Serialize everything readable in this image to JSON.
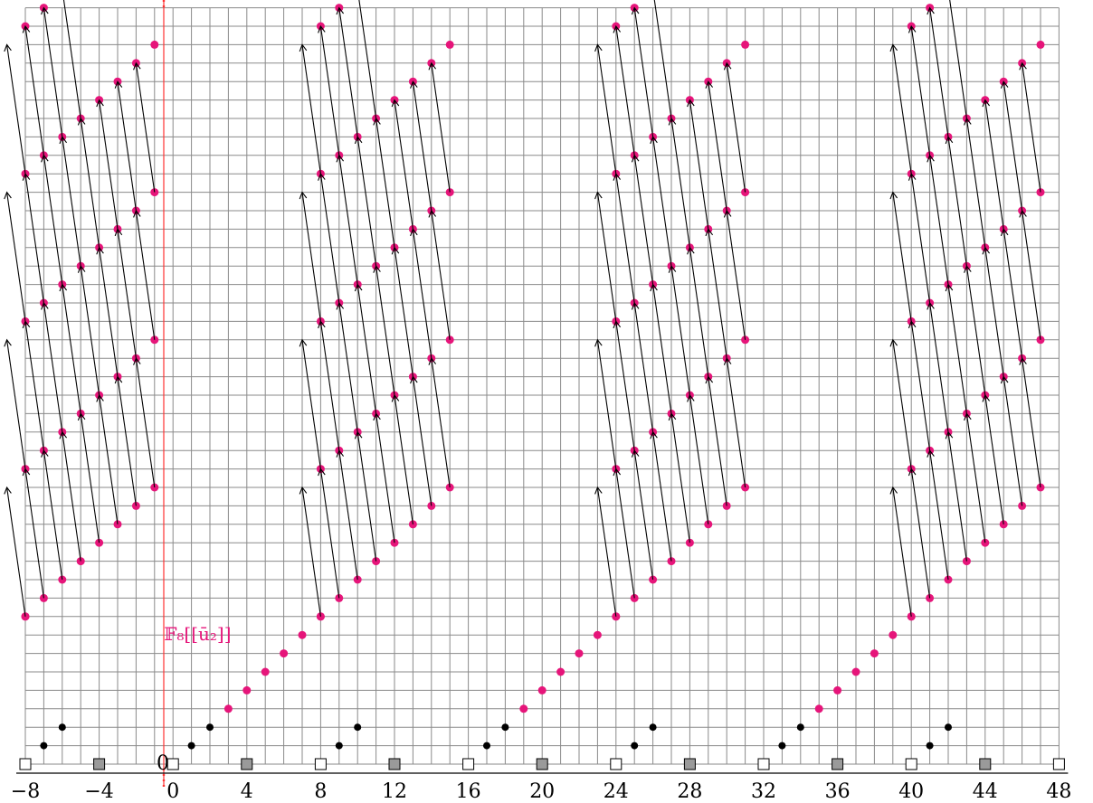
{
  "chart_data": {
    "type": "scatter",
    "x_axis": {
      "range": [
        -8,
        48
      ],
      "tick_labels": [
        "−8",
        "−4",
        "0",
        "4",
        "8",
        "12",
        "16",
        "20",
        "24",
        "28",
        "32",
        "36",
        "40",
        "44",
        "48"
      ],
      "tick_values": [
        -8,
        -4,
        0,
        4,
        8,
        12,
        16,
        20,
        24,
        28,
        32,
        36,
        40,
        44,
        48
      ]
    },
    "y_axis": {
      "range": [
        0,
        41
      ]
    },
    "grid": true,
    "filtration_label": "0",
    "series_label": "𝔽₈[[ū₂]]",
    "colors": {
      "pink": "#e6157a",
      "black": "#000000",
      "gray_square": "#9a9a9a",
      "red_line": "#ff3333",
      "grid": "#8a8a8a"
    },
    "period": 16,
    "base_marks": {
      "white_squares": [
        -8,
        0,
        8
      ],
      "gray_squares": [
        -4,
        4,
        12
      ],
      "black_dots": [
        [
          -7,
          1
        ],
        [
          -6,
          2
        ],
        [
          1,
          1
        ],
        [
          2,
          2
        ]
      ],
      "pink_diagonal_dots": [
        [
          3,
          3
        ],
        [
          4,
          4
        ],
        [
          5,
          5
        ],
        [
          6,
          6
        ],
        [
          7,
          7
        ]
      ],
      "pink_dots_lower_band": [
        [
          -8,
          8
        ],
        [
          -7,
          8
        ],
        [
          -6,
          9
        ],
        [
          -5,
          10
        ],
        [
          -4,
          11
        ],
        [
          -3,
          12
        ],
        [
          -2,
          13
        ],
        [
          -1,
          14
        ]
      ],
      "arrow_spacing_x": 1,
      "arrow_vertical_span": 8
    }
  }
}
